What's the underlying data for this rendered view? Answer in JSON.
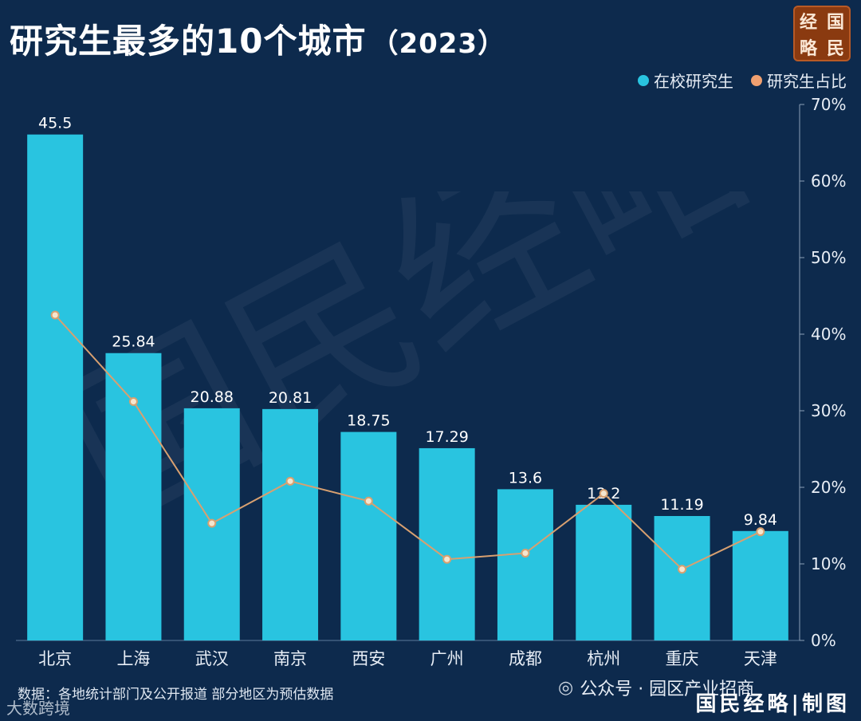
{
  "header": {
    "title": "研究生最多的10个城市",
    "year": "（2023）"
  },
  "logo": {
    "chars": [
      "经",
      "国",
      "略",
      "民"
    ]
  },
  "legend": {
    "items": [
      {
        "label": "在校研究生",
        "color": "#29c4e0"
      },
      {
        "label": "研究生占比",
        "color": "#f0a070"
      }
    ]
  },
  "footer": {
    "source": "数据：各地统计部门及公开报道 部分地区为预估数据",
    "wechat": "公众号 · 园区产业招商",
    "credit": "国民经略|制图",
    "corner_watermark": "大数跨境"
  },
  "watermark_text": "国民经略",
  "colors": {
    "background": "#0d2a4d",
    "bar": "#29c4e0",
    "line": "#d8a070",
    "marker_fill": "#f5e6cf",
    "marker_stroke": "#d8a070",
    "axis_text": "#e8eef6"
  },
  "chart_data": {
    "type": "bar",
    "categories": [
      "北京",
      "上海",
      "武汉",
      "南京",
      "西安",
      "广州",
      "成都",
      "杭州",
      "重庆",
      "天津"
    ],
    "series": [
      {
        "name": "在校研究生",
        "type": "bar",
        "values": [
          45.5,
          25.84,
          20.88,
          20.81,
          18.75,
          17.29,
          13.6,
          12.2,
          11.19,
          9.84
        ],
        "labels": [
          "45.5",
          "25.84",
          "20.88",
          "20.81",
          "18.75",
          "17.29",
          "13.6",
          "12.2",
          "11.19",
          "9.84"
        ]
      },
      {
        "name": "研究生占比",
        "type": "line",
        "axis": "right",
        "values": [
          42.5,
          31.2,
          15.3,
          20.8,
          18.2,
          10.6,
          11.4,
          19.2,
          9.3,
          14.2
        ]
      }
    ],
    "y_left_range": [
      0,
      48.2
    ],
    "y_right": {
      "range": [
        0,
        70
      ],
      "ticks": [
        0,
        10,
        20,
        30,
        40,
        50,
        60,
        70
      ],
      "tick_labels": [
        "0%",
        "10%",
        "20%",
        "30%",
        "40%",
        "50%",
        "60%",
        "70%"
      ]
    },
    "grid": false,
    "legend_position": "top-right"
  }
}
